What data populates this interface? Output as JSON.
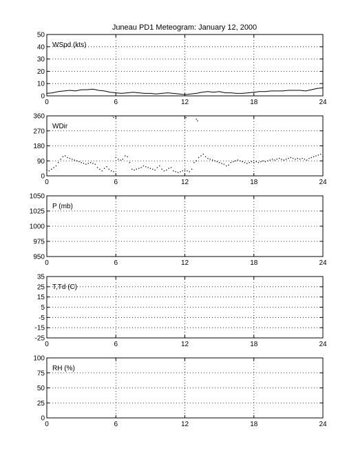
{
  "figure": {
    "title": "Juneau PD1 Meteogram:   January 12, 2000"
  },
  "chart_data": [
    {
      "type": "line",
      "label": "WSpd (kts)",
      "x": [
        0,
        0.5,
        1,
        1.5,
        2,
        2.5,
        3,
        3.5,
        4,
        4.5,
        5,
        5.5,
        6,
        6.5,
        7,
        7.5,
        8,
        8.5,
        9,
        9.5,
        10,
        10.5,
        11,
        11.5,
        12,
        12.5,
        13,
        13.5,
        14,
        14.5,
        15,
        15.5,
        16,
        16.5,
        17,
        17.5,
        18,
        18.5,
        19,
        19.5,
        20,
        20.5,
        21,
        21.5,
        22,
        22.5,
        23,
        23.5,
        24
      ],
      "y": [
        2,
        2.5,
        3.5,
        4,
        4.5,
        4,
        5,
        5,
        5.5,
        4.5,
        4,
        3,
        2.5,
        2,
        2.5,
        3,
        2.5,
        2,
        2,
        1.5,
        2,
        2.5,
        2,
        1.5,
        1,
        1.5,
        2,
        3,
        3.5,
        3,
        3.5,
        2.5,
        2.5,
        2,
        2,
        2.5,
        3,
        3.5,
        3.5,
        4,
        4,
        4,
        4.5,
        4.5,
        4.5,
        4,
        5,
        6,
        6.5
      ],
      "xlim": [
        0,
        24
      ],
      "ylim": [
        0,
        50
      ],
      "xticks": [
        0,
        6,
        12,
        18,
        24
      ],
      "yticks": [
        0,
        10,
        20,
        30,
        40,
        50
      ],
      "grid": true
    },
    {
      "type": "scatter",
      "label": "WDir",
      "x": [
        0,
        0.2,
        0.4,
        0.6,
        0.8,
        1,
        1.2,
        1.4,
        1.6,
        1.8,
        2,
        2.2,
        2.4,
        2.6,
        2.8,
        3,
        3.2,
        3.4,
        3.6,
        3.8,
        4,
        4.2,
        4.4,
        4.6,
        4.8,
        5,
        5.2,
        5.4,
        5.6,
        5.8,
        6,
        6.2,
        6.4,
        6.6,
        6.8,
        7,
        7.2,
        7.4,
        7.6,
        7.8,
        8,
        8.2,
        8.4,
        8.6,
        8.8,
        9,
        9.2,
        9.4,
        9.6,
        9.8,
        10,
        10.2,
        10.4,
        10.6,
        10.8,
        11,
        11.2,
        11.4,
        11.6,
        11.8,
        12,
        12.2,
        12.4,
        12.6,
        12.8,
        13,
        13.2,
        13.4,
        13.6,
        13.8,
        14,
        14.2,
        14.4,
        14.6,
        14.8,
        15,
        15.2,
        15.4,
        15.6,
        15.8,
        16,
        16.2,
        16.4,
        16.6,
        16.8,
        17,
        17.2,
        17.4,
        17.6,
        17.8,
        18,
        18.2,
        18.4,
        18.6,
        18.8,
        19,
        19.2,
        19.4,
        19.6,
        19.8,
        20,
        20.2,
        20.4,
        20.6,
        20.8,
        21,
        21.2,
        21.4,
        21.6,
        21.8,
        22,
        22.2,
        22.4,
        22.6,
        22.8,
        23,
        23.2,
        23.4,
        23.6,
        23.8,
        24,
        5.7,
        5.8,
        12,
        12.1,
        13,
        13.1
      ],
      "y": [
        35,
        30,
        40,
        50,
        60,
        80,
        100,
        115,
        120,
        110,
        105,
        100,
        95,
        90,
        85,
        80,
        75,
        70,
        75,
        80,
        75,
        70,
        50,
        40,
        30,
        45,
        55,
        40,
        30,
        25,
        110,
        100,
        95,
        100,
        120,
        115,
        80,
        40,
        35,
        40,
        45,
        50,
        60,
        55,
        50,
        45,
        40,
        35,
        50,
        60,
        40,
        30,
        35,
        45,
        50,
        30,
        25,
        20,
        25,
        30,
        35,
        30,
        25,
        40,
        80,
        90,
        110,
        120,
        130,
        115,
        105,
        100,
        95,
        90,
        85,
        80,
        75,
        70,
        60,
        65,
        80,
        85,
        90,
        95,
        90,
        85,
        80,
        75,
        80,
        85,
        80,
        85,
        80,
        85,
        90,
        85,
        90,
        95,
        100,
        95,
        100,
        105,
        100,
        95,
        100,
        105,
        110,
        105,
        100,
        105,
        100,
        105,
        100,
        95,
        105,
        110,
        115,
        120,
        125,
        130,
        115,
        360,
        350,
        360,
        350,
        340,
        330
      ],
      "xlim": [
        0,
        24
      ],
      "ylim": [
        0,
        360
      ],
      "xticks": [
        0,
        6,
        12,
        18,
        24
      ],
      "yticks": [
        0,
        90,
        180,
        270,
        360
      ],
      "grid": true
    },
    {
      "type": "line",
      "label": "P (mb)",
      "x": [],
      "y": [],
      "xlim": [
        0,
        24
      ],
      "ylim": [
        950,
        1050
      ],
      "xticks": [
        0,
        6,
        12,
        18,
        24
      ],
      "yticks": [
        950,
        975,
        1000,
        1025,
        1050
      ],
      "grid": true
    },
    {
      "type": "line",
      "label": "T,Td (C)",
      "x": [],
      "y": [],
      "xlim": [
        0,
        24
      ],
      "ylim": [
        -25,
        35
      ],
      "xticks": [
        0,
        6,
        12,
        18,
        24
      ],
      "yticks": [
        -25,
        -15,
        -5,
        5,
        15,
        25,
        35
      ],
      "grid": true
    },
    {
      "type": "line",
      "label": "RH (%)",
      "x": [],
      "y": [],
      "xlim": [
        0,
        24
      ],
      "ylim": [
        0,
        100
      ],
      "xticks": [
        0,
        6,
        12,
        18,
        24
      ],
      "yticks": [
        0,
        25,
        50,
        75,
        100
      ],
      "grid": true
    }
  ]
}
